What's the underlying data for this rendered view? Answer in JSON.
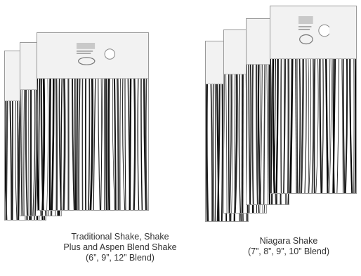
{
  "products": [
    {
      "id": "traditional",
      "caption_lines": [
        "Traditional Shake, Shake",
        "Plus and Aspen Blend Shake",
        "(6”, 9”, 12” Blend)"
      ],
      "card_count": 3
    },
    {
      "id": "niagara",
      "caption_lines": [
        "Niagara Shake",
        "(7”, 8”, 9”, 10” Blend)"
      ],
      "card_count": 4
    }
  ],
  "icons": [
    "product-label-icon",
    "wood-grain-texture"
  ],
  "colors": {
    "border": "#9a9a9a",
    "header_bg": "#f2f2f2",
    "grain_dark": "#1a1a1a"
  }
}
